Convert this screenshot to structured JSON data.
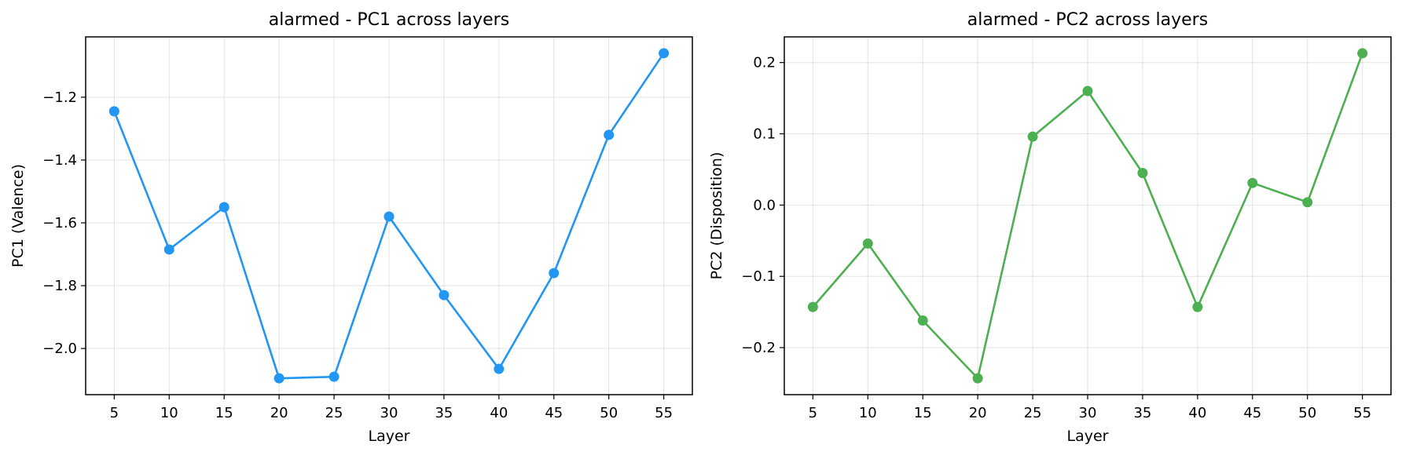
{
  "chart_data": [
    {
      "type": "line",
      "title": "alarmed - PC1 across layers",
      "xlabel": "Layer",
      "ylabel": "PC1 (Valence)",
      "color": "#2196F3",
      "grid": true,
      "x": [
        5,
        10,
        15,
        20,
        25,
        30,
        35,
        40,
        45,
        50,
        55
      ],
      "series": [
        {
          "values": [
            -1.245,
            -1.685,
            -1.55,
            -2.095,
            -2.09,
            -1.58,
            -1.83,
            -2.065,
            -1.76,
            -1.32,
            -1.06
          ]
        }
      ],
      "xlim": [
        2.4,
        57.6
      ],
      "ylim": [
        -2.147,
        -1.008
      ],
      "xticks": [
        5,
        10,
        15,
        20,
        25,
        30,
        35,
        40,
        45,
        50,
        55
      ],
      "yticks": [
        -2.0,
        -1.8,
        -1.6,
        -1.4,
        -1.2
      ],
      "ytick_labels": [
        "−2.0",
        "−1.8",
        "−1.6",
        "−1.4",
        "−1.2"
      ]
    },
    {
      "type": "line",
      "title": "alarmed - PC2 across layers",
      "xlabel": "Layer",
      "ylabel": "PC2 (Disposition)",
      "color": "#4CAF50",
      "grid": true,
      "x": [
        5,
        10,
        15,
        20,
        25,
        30,
        35,
        40,
        45,
        50,
        55
      ],
      "series": [
        {
          "values": [
            -0.143,
            -0.054,
            -0.162,
            -0.243,
            0.096,
            0.16,
            0.045,
            -0.143,
            0.031,
            0.004,
            0.213
          ]
        }
      ],
      "xlim": [
        2.4,
        57.6
      ],
      "ylim": [
        -0.266,
        0.236
      ],
      "xticks": [
        5,
        10,
        15,
        20,
        25,
        30,
        35,
        40,
        45,
        50,
        55
      ],
      "yticks": [
        -0.2,
        -0.1,
        0.0,
        0.1,
        0.2
      ],
      "ytick_labels": [
        "−0.2",
        "−0.1",
        "0.0",
        "0.1",
        "0.2"
      ]
    }
  ]
}
